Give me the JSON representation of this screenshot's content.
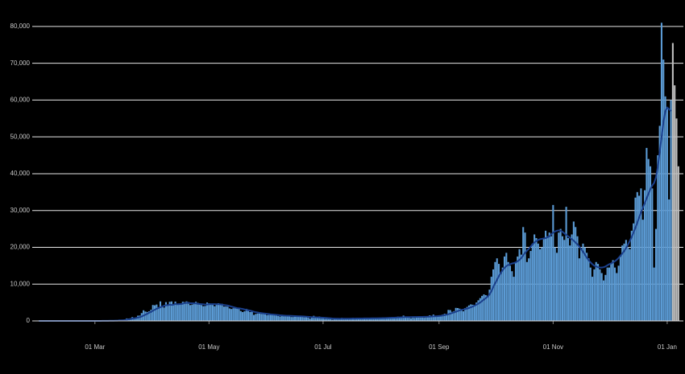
{
  "chart_data": {
    "type": "bar",
    "x": [
      "31 Jan",
      "01 Feb",
      "02 Feb",
      "03 Feb",
      "04 Feb",
      "05 Feb",
      "06 Feb",
      "07 Feb",
      "08 Feb",
      "09 Feb",
      "10 Feb",
      "11 Feb",
      "12 Feb",
      "13 Feb",
      "14 Feb",
      "15 Feb",
      "16 Feb",
      "17 Feb",
      "18 Feb",
      "19 Feb",
      "20 Feb",
      "21 Feb",
      "22 Feb",
      "23 Feb",
      "24 Feb",
      "25 Feb",
      "26 Feb",
      "27 Feb",
      "28 Feb",
      "29 Feb",
      "01 Mar",
      "02 Mar",
      "03 Mar",
      "04 Mar",
      "05 Mar",
      "06 Mar",
      "07 Mar",
      "08 Mar",
      "09 Mar",
      "10 Mar",
      "11 Mar",
      "12 Mar",
      "13 Mar",
      "14 Mar",
      "15 Mar",
      "16 Mar",
      "17 Mar",
      "18 Mar",
      "19 Mar",
      "20 Mar",
      "21 Mar",
      "22 Mar",
      "23 Mar",
      "24 Mar",
      "25 Mar",
      "26 Mar",
      "27 Mar",
      "28 Mar",
      "29 Mar",
      "30 Mar",
      "31 Mar",
      "01 Apr",
      "02 Apr",
      "03 Apr",
      "04 Apr",
      "05 Apr",
      "06 Apr",
      "07 Apr",
      "08 Apr",
      "09 Apr",
      "10 Apr",
      "11 Apr",
      "12 Apr",
      "13 Apr",
      "14 Apr",
      "15 Apr",
      "16 Apr",
      "17 Apr",
      "18 Apr",
      "19 Apr",
      "20 Apr",
      "21 Apr",
      "22 Apr",
      "23 Apr",
      "24 Apr",
      "25 Apr",
      "26 Apr",
      "27 Apr",
      "28 Apr",
      "29 Apr",
      "30 Apr",
      "01 May",
      "02 May",
      "03 May",
      "04 May",
      "05 May",
      "06 May",
      "07 May",
      "08 May",
      "09 May",
      "10 May",
      "11 May",
      "12 May",
      "13 May",
      "14 May",
      "15 May",
      "16 May",
      "17 May",
      "18 May",
      "19 May",
      "20 May",
      "21 May",
      "22 May",
      "23 May",
      "24 May",
      "25 May",
      "26 May",
      "27 May",
      "28 May",
      "29 May",
      "30 May",
      "31 May",
      "01 Jun",
      "02 Jun",
      "03 Jun",
      "04 Jun",
      "05 Jun",
      "06 Jun",
      "07 Jun",
      "08 Jun",
      "09 Jun",
      "10 Jun",
      "11 Jun",
      "12 Jun",
      "13 Jun",
      "14 Jun",
      "15 Jun",
      "16 Jun",
      "17 Jun",
      "18 Jun",
      "19 Jun",
      "20 Jun",
      "21 Jun",
      "22 Jun",
      "23 Jun",
      "24 Jun",
      "25 Jun",
      "26 Jun",
      "27 Jun",
      "28 Jun",
      "29 Jun",
      "30 Jun",
      "01 Jul",
      "02 Jul",
      "03 Jul",
      "04 Jul",
      "05 Jul",
      "06 Jul",
      "07 Jul",
      "08 Jul",
      "09 Jul",
      "10 Jul",
      "11 Jul",
      "12 Jul",
      "13 Jul",
      "14 Jul",
      "15 Jul",
      "16 Jul",
      "17 Jul",
      "18 Jul",
      "19 Jul",
      "20 Jul",
      "21 Jul",
      "22 Jul",
      "23 Jul",
      "24 Jul",
      "25 Jul",
      "26 Jul",
      "27 Jul",
      "28 Jul",
      "29 Jul",
      "30 Jul",
      "31 Jul",
      "01 Aug",
      "02 Aug",
      "03 Aug",
      "04 Aug",
      "05 Aug",
      "06 Aug",
      "07 Aug",
      "08 Aug",
      "09 Aug",
      "10 Aug",
      "11 Aug",
      "12 Aug",
      "13 Aug",
      "14 Aug",
      "15 Aug",
      "16 Aug",
      "17 Aug",
      "18 Aug",
      "19 Aug",
      "20 Aug",
      "21 Aug",
      "22 Aug",
      "23 Aug",
      "24 Aug",
      "25 Aug",
      "26 Aug",
      "27 Aug",
      "28 Aug",
      "29 Aug",
      "30 Aug",
      "31 Aug",
      "01 Sep",
      "02 Sep",
      "03 Sep",
      "04 Sep",
      "05 Sep",
      "06 Sep",
      "07 Sep",
      "08 Sep",
      "09 Sep",
      "10 Sep",
      "11 Sep",
      "12 Sep",
      "13 Sep",
      "14 Sep",
      "15 Sep",
      "16 Sep",
      "17 Sep",
      "18 Sep",
      "19 Sep",
      "20 Sep",
      "21 Sep",
      "22 Sep",
      "23 Sep",
      "24 Sep",
      "25 Sep",
      "26 Sep",
      "27 Sep",
      "28 Sep",
      "29 Sep",
      "30 Sep",
      "01 Oct",
      "02 Oct",
      "03 Oct",
      "04 Oct",
      "05 Oct",
      "06 Oct",
      "07 Oct",
      "08 Oct",
      "09 Oct",
      "10 Oct",
      "11 Oct",
      "12 Oct",
      "13 Oct",
      "14 Oct",
      "15 Oct",
      "16 Oct",
      "17 Oct",
      "18 Oct",
      "19 Oct",
      "20 Oct",
      "21 Oct",
      "22 Oct",
      "23 Oct",
      "24 Oct",
      "25 Oct",
      "26 Oct",
      "27 Oct",
      "28 Oct",
      "29 Oct",
      "30 Oct",
      "31 Oct",
      "01 Nov",
      "02 Nov",
      "03 Nov",
      "04 Nov",
      "05 Nov",
      "06 Nov",
      "07 Nov",
      "08 Nov",
      "09 Nov",
      "10 Nov",
      "11 Nov",
      "12 Nov",
      "13 Nov",
      "14 Nov",
      "15 Nov",
      "16 Nov",
      "17 Nov",
      "18 Nov",
      "19 Nov",
      "20 Nov",
      "21 Nov",
      "22 Nov",
      "23 Nov",
      "24 Nov",
      "25 Nov",
      "26 Nov",
      "27 Nov",
      "28 Nov",
      "29 Nov",
      "30 Nov",
      "01 Dec",
      "02 Dec",
      "03 Dec",
      "04 Dec",
      "05 Dec",
      "06 Dec",
      "07 Dec",
      "08 Dec",
      "09 Dec",
      "10 Dec",
      "11 Dec",
      "12 Dec",
      "13 Dec",
      "14 Dec",
      "15 Dec",
      "16 Dec",
      "17 Dec",
      "18 Dec",
      "19 Dec",
      "20 Dec",
      "21 Dec",
      "22 Dec",
      "23 Dec",
      "24 Dec",
      "25 Dec",
      "26 Dec",
      "27 Dec",
      "28 Dec",
      "29 Dec",
      "30 Dec",
      "31 Dec",
      "01 Jan",
      "02 Jan",
      "03 Jan",
      "04 Jan",
      "05 Jan",
      "06 Jan",
      "07 Jan"
    ],
    "series": [
      {
        "type": "bar",
        "color": "#5b9bd5",
        "values": [
          0,
          0,
          0,
          0,
          0,
          1,
          0,
          0,
          1,
          0,
          0,
          1,
          0,
          0,
          0,
          0,
          0,
          0,
          0,
          0,
          0,
          1,
          0,
          0,
          1,
          4,
          2,
          6,
          5,
          7,
          12,
          4,
          11,
          34,
          29,
          48,
          45,
          47,
          67,
          46,
          65,
          134,
          208,
          342,
          251,
          152,
          407,
          676,
          643,
          714,
          1035,
          665,
          967,
          1427,
          1452,
          2129,
          2885,
          2546,
          2433,
          2619,
          3009,
          4324,
          4244,
          4450,
          3735,
          5300,
          3802,
          3634,
          5100,
          4344,
          5195,
          5288,
          4342,
          5252,
          4603,
          4617,
          4670,
          5200,
          5100,
          5300,
          4676,
          4301,
          4451,
          4583,
          5200,
          4913,
          4463,
          4309,
          3996,
          4076,
          5000,
          4800,
          4500,
          4339,
          3985,
          4406,
          4800,
          4700,
          4649,
          3896,
          3923,
          3877,
          3403,
          3242,
          3446,
          3560,
          3450,
          3534,
          2684,
          2412,
          2615,
          3287,
          2959,
          2405,
          2595,
          1625,
          1887,
          2004,
          2013,
          1887,
          1936,
          1805,
          1570,
          1613,
          1871,
          1805,
          1650,
          1557,
          1326,
          1205,
          1387,
          1266,
          1541,
          1425,
          1514,
          1056,
          1056,
          1279,
          1218,
          1346,
          1295,
          1221,
          958,
          1205,
          874,
          653,
          1118,
          1380,
          901,
          890,
          1176,
          689,
          829,
          576,
          624,
          516,
          530,
          352,
          581,
          630,
          512,
          642,
          820,
          650,
          530,
          598,
          538,
          642,
          827,
          763,
          580,
          670,
          445,
          560,
          769,
          688,
          767,
          747,
          685,
          581,
          763,
          880,
          846,
          744,
          938,
          743,
          670,
          950,
          950,
          871,
          758,
          1062,
          1148,
          1012,
          1009,
          1441,
          1062,
          1040,
          1012,
          713,
          1182,
          812,
          1089,
          1033,
          1288,
          1041,
          853,
          1184,
          1048,
          1522,
          1276,
          1715,
          1108,
          1406,
          1295,
          1508,
          1735,
          1940,
          1813,
          2988,
          2948,
          2460,
          2659,
          3539,
          3497,
          3330,
          3105,
          2621,
          3500,
          3800,
          4200,
          4500,
          4400,
          4300,
          5000,
          5600,
          6200,
          6800,
          7200,
          7000,
          6500,
          8500,
          12000,
          14000,
          16000,
          17000,
          15500,
          12800,
          14500,
          17500,
          18500,
          16000,
          15000,
          13500,
          12000,
          16000,
          17500,
          19500,
          18000,
          25500,
          24000,
          16000,
          17000,
          19000,
          21000,
          23500,
          22500,
          21000,
          19500,
          20000,
          22500,
          24500,
          23000,
          24000,
          23000,
          31500,
          20000,
          18500,
          24000,
          25000,
          23000,
          22000,
          31000,
          22500,
          20500,
          23500,
          27000,
          25500,
          23000,
          17000,
          19500,
          21000,
          20000,
          18500,
          17000,
          14500,
          12000,
          14000,
          16000,
          15500,
          14000,
          13000,
          11000,
          12500,
          14500,
          14500,
          15500,
          16500,
          14500,
          13000,
          15000,
          17500,
          20500,
          21000,
          22000,
          20000,
          19500,
          24500,
          26500,
          33500,
          35000,
          34000,
          36000,
          27500,
          35500,
          47000,
          44000,
          42000,
          36000,
          14500,
          25000,
          45000,
          53000,
          81000,
          71000,
          61000,
          58000,
          33000,
          60000,
          null,
          null,
          null,
          null
        ]
      },
      {
        "type": "bar",
        "color": "#bfbfbf",
        "x": [
          "04 Jan",
          "05 Jan",
          "06 Jan",
          "07 Jan"
        ],
        "values": [
          75500,
          64000,
          55000,
          42000
        ]
      },
      {
        "type": "line",
        "color": "#1a3f8c",
        "values": [
          0,
          0,
          0,
          0,
          0,
          0,
          0,
          0,
          0,
          0,
          0,
          0,
          0,
          0,
          0,
          0,
          0,
          0,
          0,
          0,
          0,
          0,
          0,
          0,
          0,
          0,
          0,
          0,
          0,
          0,
          5,
          6,
          8,
          12,
          17,
          24,
          30,
          35,
          42,
          50,
          58,
          72,
          95,
          135,
          160,
          180,
          230,
          320,
          400,
          490,
          620,
          690,
          790,
          900,
          1010,
          1220,
          1450,
          1700,
          1930,
          2220,
          2440,
          2780,
          3030,
          3300,
          3500,
          3700,
          3930,
          4110,
          4280,
          4270,
          4410,
          4330,
          4400,
          4630,
          4500,
          4560,
          4600,
          4680,
          4820,
          4900,
          4960,
          4810,
          4800,
          4780,
          4750,
          4640,
          4600,
          4570,
          4520,
          4450,
          4460,
          4530,
          4560,
          4570,
          4550,
          4520,
          4520,
          4500,
          4420,
          4330,
          4250,
          4180,
          4050,
          3900,
          3750,
          3600,
          3480,
          3420,
          3350,
          3250,
          3120,
          3000,
          2900,
          2780,
          2650,
          2500,
          2380,
          2290,
          2200,
          2120,
          2060,
          2000,
          1920,
          1850,
          1790,
          1740,
          1690,
          1640,
          1590,
          1540,
          1500,
          1460,
          1420,
          1400,
          1390,
          1360,
          1330,
          1310,
          1290,
          1270,
          1250,
          1230,
          1200,
          1160,
          1110,
          1060,
          1020,
          1000,
          980,
          960,
          930,
          900,
          870,
          830,
          790,
          740,
          700,
          650,
          620,
          600,
          590,
          580,
          590,
          600,
          610,
          610,
          610,
          620,
          630,
          640,
          650,
          660,
          660,
          660,
          670,
          670,
          680,
          690,
          700,
          700,
          710,
          720,
          730,
          740,
          760,
          770,
          790,
          810,
          840,
          860,
          880,
          910,
          940,
          960,
          980,
          1010,
          1030,
          1040,
          1050,
          1050,
          1060,
          1060,
          1070,
          1080,
          1090,
          1100,
          1110,
          1120,
          1140,
          1160,
          1190,
          1220,
          1250,
          1290,
          1340,
          1400,
          1480,
          1570,
          1680,
          1820,
          1980,
          2140,
          2320,
          2500,
          2680,
          2860,
          3000,
          3100,
          3230,
          3360,
          3500,
          3700,
          3900,
          4150,
          4400,
          4700,
          5000,
          5400,
          5800,
          6200,
          6600,
          7200,
          8100,
          9200,
          10200,
          11200,
          12200,
          13000,
          13800,
          14400,
          14900,
          15200,
          15400,
          15600,
          15700,
          15900,
          16200,
          16600,
          17100,
          17800,
          18500,
          19100,
          19600,
          20200,
          20800,
          21300,
          21700,
          22000,
          22200,
          22300,
          22400,
          22500,
          22700,
          23000,
          23500,
          24000,
          24300,
          24500,
          24600,
          24500,
          24200,
          23800,
          23400,
          23000,
          22600,
          22200,
          21800,
          21300,
          20800,
          20200,
          19500,
          18800,
          18000,
          17200,
          16500,
          15900,
          15400,
          15000,
          14800,
          14600,
          14500,
          14500,
          14600,
          14800,
          15100,
          15400,
          15600,
          15900,
          16200,
          16600,
          17100,
          17700,
          18300,
          19000,
          19800,
          20700,
          21700,
          22800,
          24000,
          25300,
          26700,
          28100,
          29500,
          30800,
          32000,
          33300,
          34600,
          35800,
          36800,
          37500,
          39000,
          42000,
          46000,
          50000,
          54000,
          57000,
          58000,
          57500,
          57000,
          null,
          null,
          null,
          null
        ]
      }
    ],
    "xticks": [
      "01 Mar",
      "01 May",
      "01 Jul",
      "01 Sep",
      "01 Nov",
      "01 Jan"
    ],
    "ylim": [
      0,
      85000
    ],
    "yticks": [
      0,
      {
        "value": 10000,
        "label": "10,000"
      },
      {
        "value": 20000,
        "label": "20,000"
      },
      {
        "value": 30000,
        "label": "30,000"
      },
      {
        "value": 40000,
        "label": "40,000"
      },
      {
        "value": 50000,
        "label": "50,000"
      },
      {
        "value": 60000,
        "label": "60,000"
      },
      {
        "value": 70000,
        "label": "70,000"
      },
      {
        "value": 80000,
        "label": "80,000"
      }
    ],
    "grid": true
  }
}
